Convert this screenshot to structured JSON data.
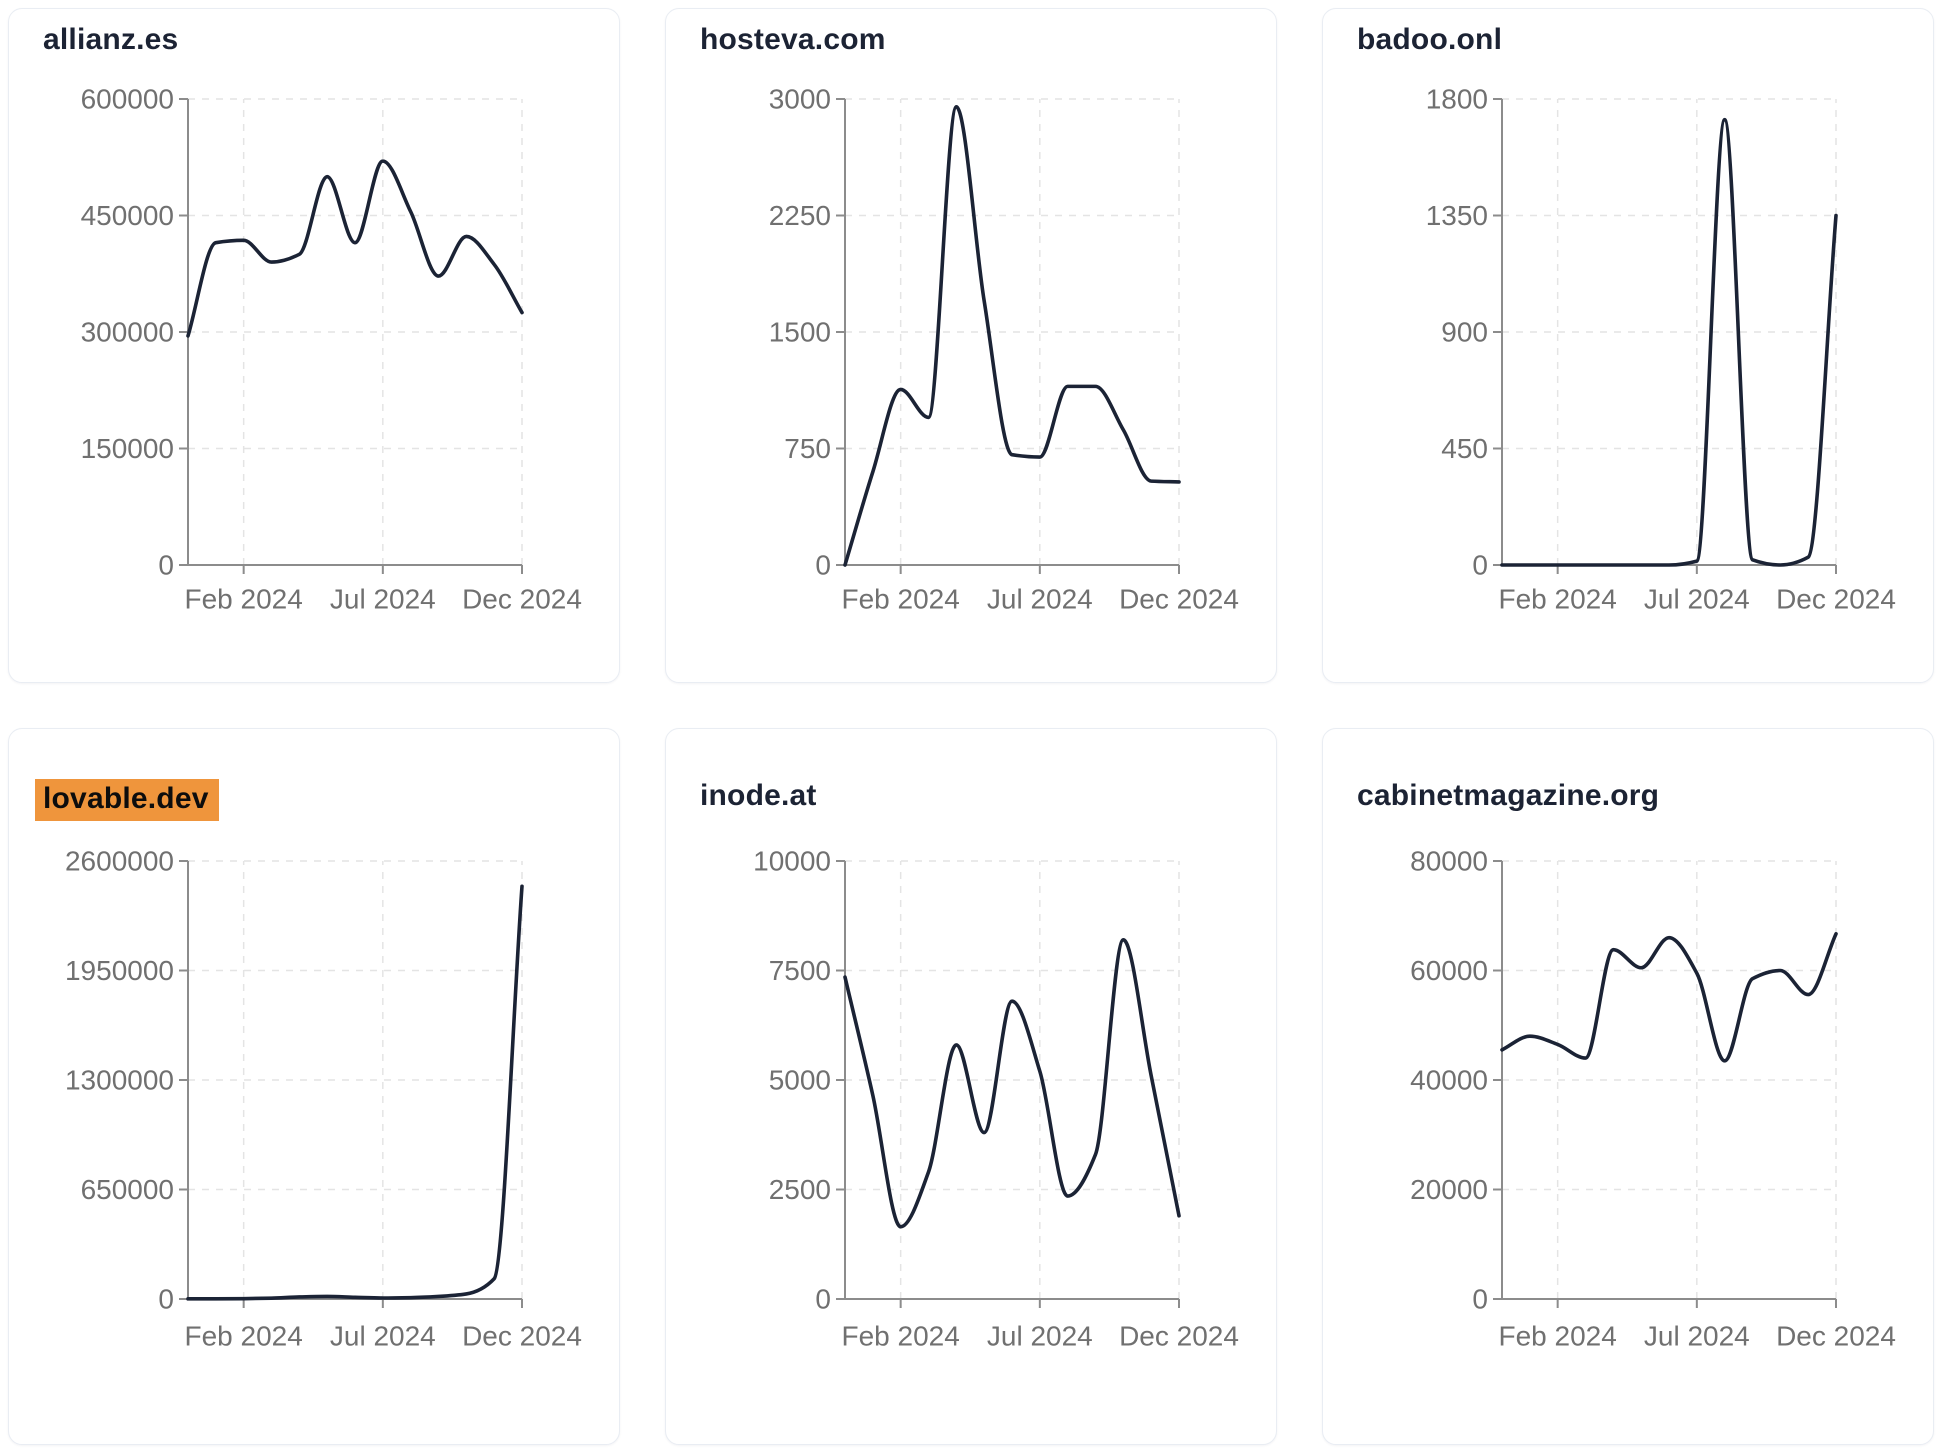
{
  "page": {
    "background": "#ffffff"
  },
  "x_axis": {
    "tick_labels": [
      "Feb 2024",
      "Jul 2024",
      "Dec 2024"
    ],
    "tick_month_indices": [
      2,
      7,
      12
    ],
    "months": [
      "Dec 2023",
      "Jan 2024",
      "Feb 2024",
      "Mar 2024",
      "Apr 2024",
      "May 2024",
      "Jun 2024",
      "Jul 2024",
      "Aug 2024",
      "Sep 2024",
      "Oct 2024",
      "Nov 2024",
      "Dec 2024"
    ]
  },
  "style": {
    "line_color": "#1b2335",
    "axis_color": "#8c8c8c",
    "grid_color": "#e4e4e4",
    "tick_label_color": "#707070",
    "title_color": "#1c2334",
    "highlight_color": "#EF953C",
    "card_border_color": "#e9edf3"
  },
  "chart_data": [
    {
      "type": "line",
      "title": "allianz.es",
      "title_highlighted": false,
      "ylim": [
        0,
        600000
      ],
      "y_ticks": [
        0,
        150000,
        300000,
        450000,
        600000
      ],
      "x_tick_labels": [
        "Feb 2024",
        "Jul 2024",
        "Dec 2024"
      ],
      "grid": "dashed",
      "legend": "none",
      "values": [
        295000,
        415000,
        418000,
        390000,
        400000,
        500000,
        415000,
        520000,
        455000,
        372000,
        423000,
        387000,
        325000
      ]
    },
    {
      "type": "line",
      "title": "hosteva.com",
      "title_highlighted": false,
      "ylim": [
        0,
        3000
      ],
      "y_ticks": [
        0,
        750,
        1500,
        2250,
        3000
      ],
      "x_tick_labels": [
        "Feb 2024",
        "Jul 2024",
        "Dec 2024"
      ],
      "grid": "dashed",
      "legend": "none",
      "values": [
        0,
        600,
        1130,
        950,
        2950,
        1700,
        710,
        695,
        1150,
        1150,
        870,
        540,
        535
      ]
    },
    {
      "type": "line",
      "title": "badoo.onl",
      "title_highlighted": false,
      "ylim": [
        0,
        1800
      ],
      "y_ticks": [
        0,
        450,
        900,
        1350,
        1800
      ],
      "x_tick_labels": [
        "Feb 2024",
        "Jul 2024",
        "Dec 2024"
      ],
      "grid": "dashed",
      "legend": "none",
      "values": [
        0,
        0,
        0,
        0,
        0,
        0,
        0,
        15,
        1720,
        20,
        0,
        30,
        1350
      ]
    },
    {
      "type": "line",
      "title": "lovable.dev",
      "title_highlighted": true,
      "ylim": [
        0,
        2600000
      ],
      "y_ticks": [
        0,
        650000,
        1300000,
        1950000,
        2600000
      ],
      "x_tick_labels": [
        "Feb 2024",
        "Jul 2024",
        "Dec 2024"
      ],
      "grid": "dashed",
      "legend": "none",
      "values": [
        1000,
        1000,
        2000,
        5000,
        12000,
        15000,
        10000,
        6000,
        8000,
        15000,
        30000,
        120000,
        2450000
      ]
    },
    {
      "type": "line",
      "title": "inode.at",
      "title_highlighted": false,
      "ylim": [
        0,
        10000
      ],
      "y_ticks": [
        0,
        2500,
        5000,
        7500,
        10000
      ],
      "x_tick_labels": [
        "Feb 2024",
        "Jul 2024",
        "Dec 2024"
      ],
      "grid": "dashed",
      "legend": "none",
      "values": [
        7350,
        4650,
        1650,
        2900,
        5800,
        3800,
        6800,
        5200,
        2350,
        3300,
        8200,
        5100,
        1900
      ]
    },
    {
      "type": "line",
      "title": "cabinetmagazine.org",
      "title_highlighted": false,
      "ylim": [
        0,
        80000
      ],
      "y_ticks": [
        0,
        20000,
        40000,
        60000,
        80000
      ],
      "x_tick_labels": [
        "Feb 2024",
        "Jul 2024",
        "Dec 2024"
      ],
      "grid": "dashed",
      "legend": "none",
      "values": [
        45500,
        48000,
        46500,
        44000,
        63800,
        60500,
        66000,
        59500,
        43500,
        58500,
        60000,
        55600,
        66700
      ]
    }
  ]
}
